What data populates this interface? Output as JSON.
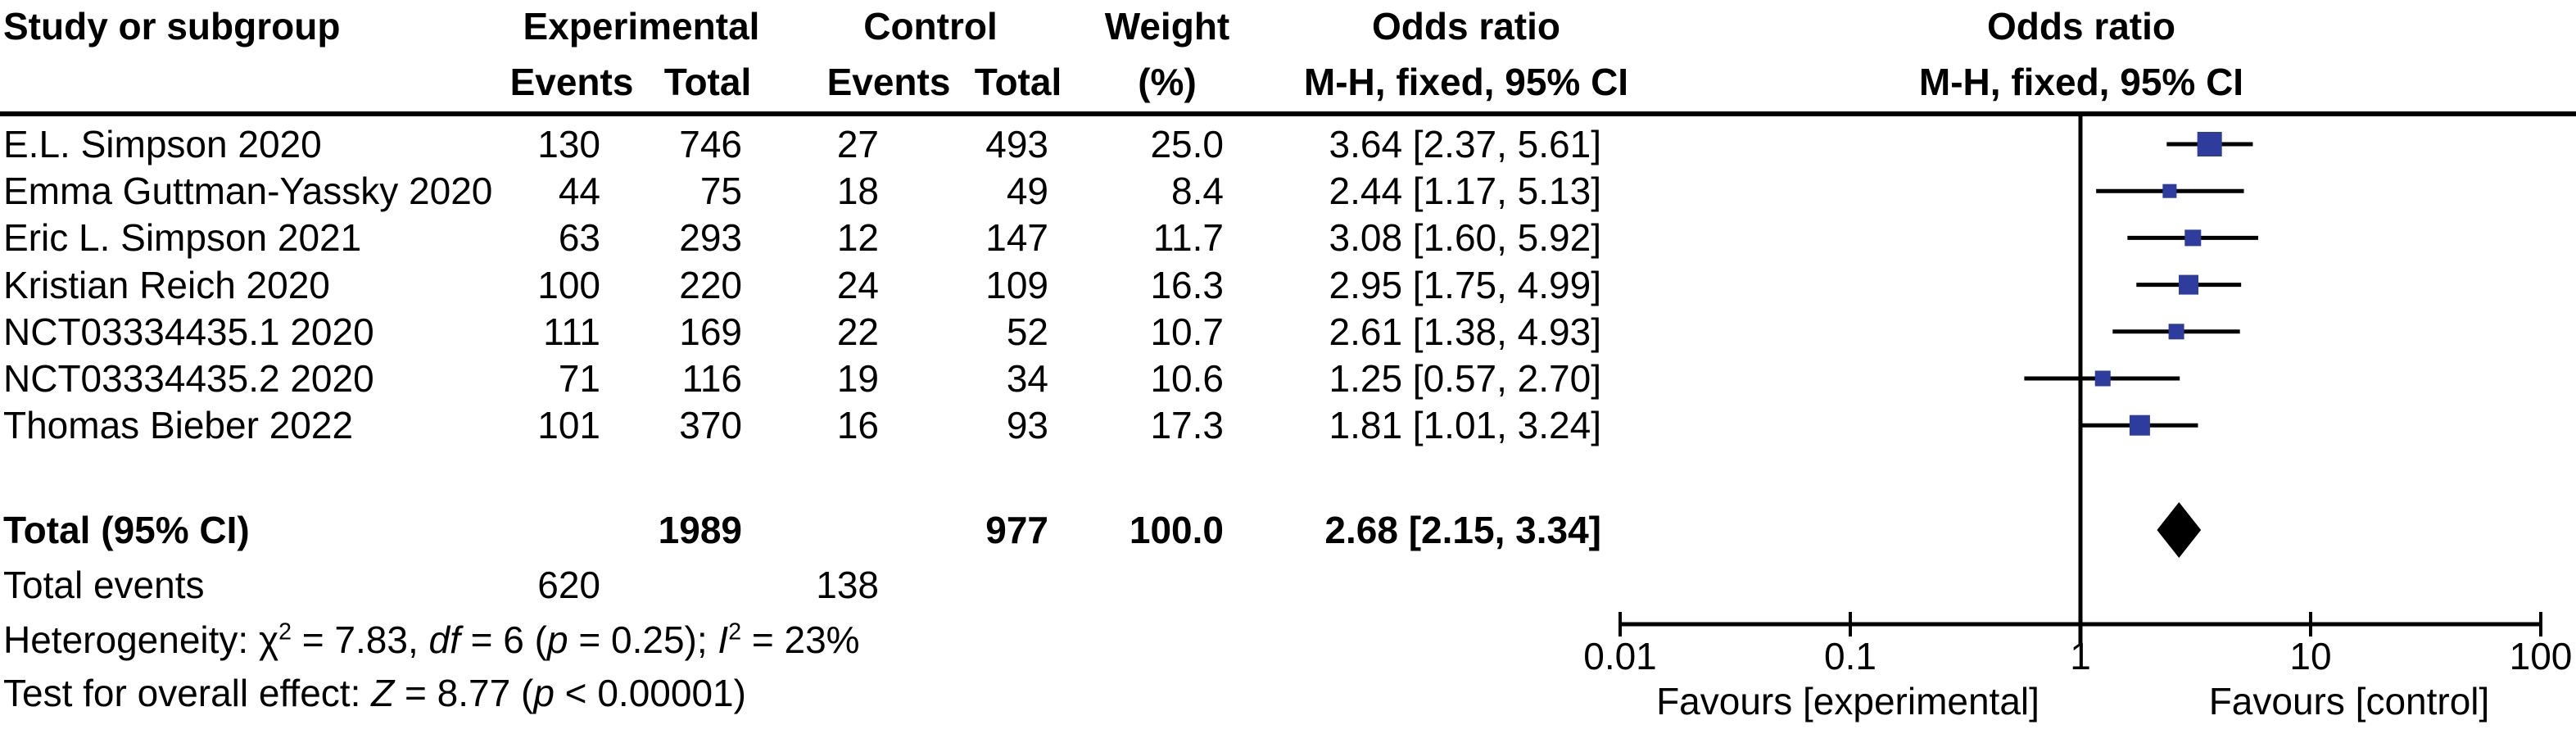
{
  "figure": {
    "background": "#ffffff",
    "text_color": "#000000",
    "marker_color": "#2e3c9d",
    "line_color": "#000000"
  },
  "header": {
    "study_col": "Study or subgroup",
    "experimental": "Experimental",
    "control": "Control",
    "weight": "Weight",
    "weight_unit": "(%)",
    "events": "Events",
    "total": "Total",
    "events2": "Events",
    "total2": "Total",
    "odds_ratio_left": "Odds ratio",
    "method_left": "M-H, fixed, 95% CI",
    "odds_ratio_right": "Odds ratio",
    "method_right": "M-H, fixed, 95% CI"
  },
  "chart_data": {
    "type": "forest",
    "effect_measure": "Odds ratio",
    "method": "M-H, fixed, 95% CI",
    "x_scale": "log10",
    "x_ticks": [
      0.01,
      0.1,
      1,
      10,
      100
    ],
    "x_tick_labels": [
      "0.01",
      "0.1",
      "1",
      "10",
      "100"
    ],
    "x_range": [
      0.01,
      100
    ],
    "null_line": 1,
    "favours_left": "Favours [experimental]",
    "favours_right": "Favours [control]",
    "studies": [
      {
        "label": "E.L. Simpson 2020",
        "exp_events": "130",
        "exp_total": "746",
        "ctl_events": "27",
        "ctl_total": "493",
        "weight": 25.0,
        "weight_text": "25.0",
        "or": 3.64,
        "ci_low": 2.37,
        "ci_high": 5.61,
        "or_text": "3.64 [2.37, 5.61]"
      },
      {
        "label": "Emma Guttman-Yassky 2020",
        "exp_events": "44",
        "exp_total": "75",
        "ctl_events": "18",
        "ctl_total": "49",
        "weight": 8.4,
        "weight_text": "8.4",
        "or": 2.44,
        "ci_low": 1.17,
        "ci_high": 5.13,
        "or_text": "2.44 [1.17, 5.13]"
      },
      {
        "label": "Eric L. Simpson 2021",
        "exp_events": "63",
        "exp_total": "293",
        "ctl_events": "12",
        "ctl_total": "147",
        "weight": 11.7,
        "weight_text": "11.7",
        "or": 3.08,
        "ci_low": 1.6,
        "ci_high": 5.92,
        "or_text": "3.08 [1.60, 5.92]"
      },
      {
        "label": "Kristian Reich 2020",
        "exp_events": "100",
        "exp_total": "220",
        "ctl_events": "24",
        "ctl_total": "109",
        "weight": 16.3,
        "weight_text": "16.3",
        "or": 2.95,
        "ci_low": 1.75,
        "ci_high": 4.99,
        "or_text": "2.95 [1.75, 4.99]"
      },
      {
        "label": "NCT03334435.1 2020",
        "exp_events": "111",
        "exp_total": "169",
        "ctl_events": "22",
        "ctl_total": "52",
        "weight": 10.7,
        "weight_text": "10.7",
        "or": 2.61,
        "ci_low": 1.38,
        "ci_high": 4.93,
        "or_text": "2.61 [1.38, 4.93]"
      },
      {
        "label": "NCT03334435.2 2020",
        "exp_events": "71",
        "exp_total": "116",
        "ctl_events": "19",
        "ctl_total": "34",
        "weight": 10.6,
        "weight_text": "10.6",
        "or": 1.25,
        "ci_low": 0.57,
        "ci_high": 2.7,
        "or_text": "1.25 [0.57, 2.70]"
      },
      {
        "label": "Thomas Bieber 2022",
        "exp_events": "101",
        "exp_total": "370",
        "ctl_events": "16",
        "ctl_total": "93",
        "weight": 17.3,
        "weight_text": "17.3",
        "or": 1.81,
        "ci_low": 1.01,
        "ci_high": 3.24,
        "or_text": "1.81 [1.01, 3.24]"
      }
    ],
    "total": {
      "label": "Total (95% CI)",
      "exp_total": "1989",
      "ctl_total": "977",
      "weight_text": "100.0",
      "or": 2.68,
      "ci_low": 2.15,
      "ci_high": 3.34,
      "or_text": "2.68 [2.15, 3.34]"
    },
    "total_events": {
      "label": "Total events",
      "exp": "620",
      "ctl": "138"
    }
  },
  "footer": {
    "heterogeneity_segments": [
      {
        "text": "Heterogeneity: "
      },
      {
        "text": "χ"
      },
      {
        "text": "2",
        "sup": true
      },
      {
        "text": " = 7.83, "
      },
      {
        "text": "df",
        "italic": true
      },
      {
        "text": " = 6 ("
      },
      {
        "text": "p",
        "italic": true
      },
      {
        "text": " = 0.25); "
      },
      {
        "text": "I",
        "italic": true
      },
      {
        "text": "2",
        "sup": true
      },
      {
        "text": " = 23%"
      }
    ],
    "overall_effect_segments": [
      {
        "text": "Test for overall effect: "
      },
      {
        "text": "Z",
        "italic": true
      },
      {
        "text": " = 8.77 ("
      },
      {
        "text": "p",
        "italic": true
      },
      {
        "text": " < 0.00001)"
      }
    ]
  }
}
